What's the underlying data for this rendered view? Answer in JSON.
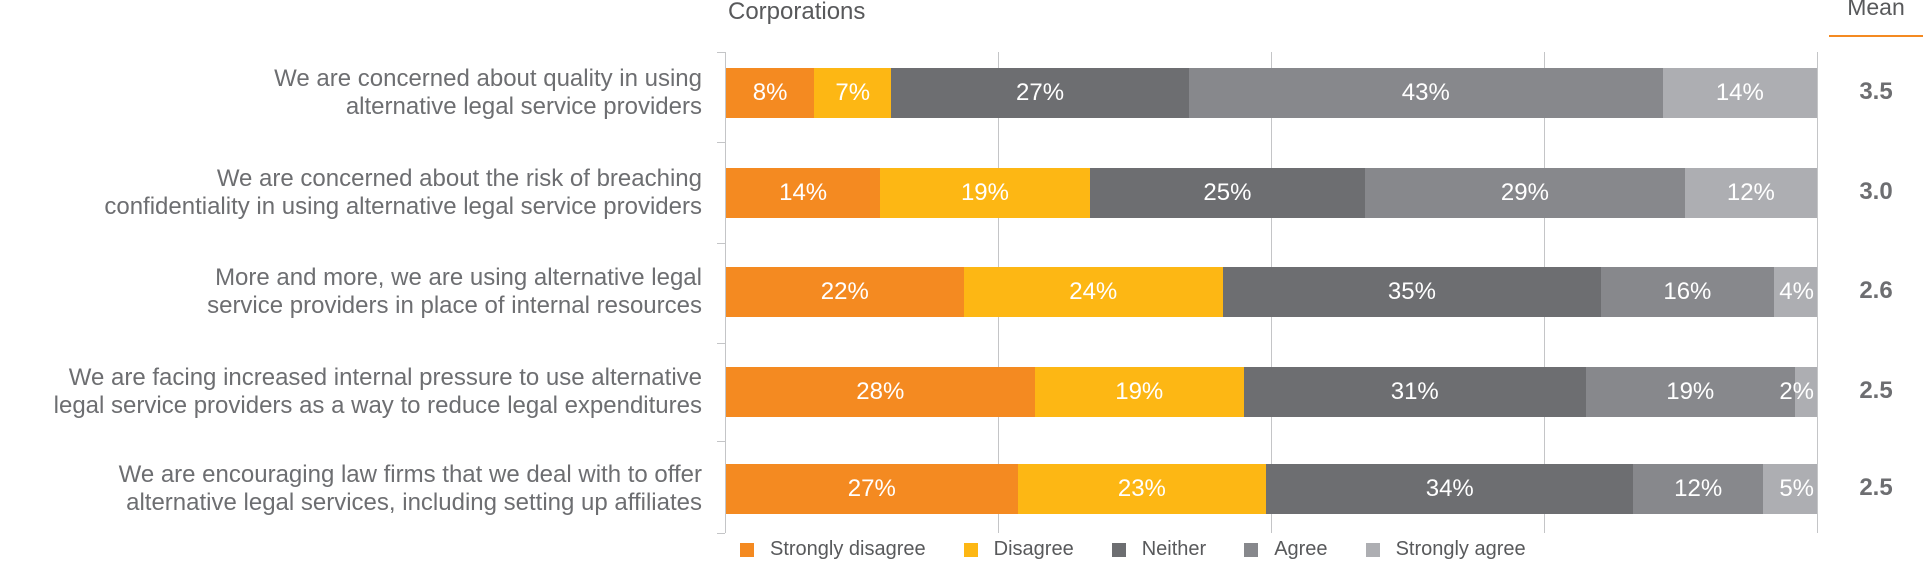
{
  "chart_data": {
    "type": "bar",
    "orientation": "horizontal",
    "stacked": true,
    "title": "Corporations",
    "mean_header": "Mean",
    "xlabel": "",
    "ylabel": "",
    "xlim": [
      0,
      100
    ],
    "grid": true,
    "legend_position": "bottom",
    "categories": [
      [
        "We are concerned about quality in using",
        "alternative legal service providers"
      ],
      [
        "We are concerned about the risk of breaching",
        "confidentiality in using alternative legal service providers"
      ],
      [
        "More and more, we are using alternative legal",
        "service providers in place of internal resources"
      ],
      [
        "We are facing increased internal pressure to use alternative",
        "legal service providers as a way to reduce legal expenditures"
      ],
      [
        "We are encouraging law firms that we deal with to offer",
        "alternative legal services, including setting up affiliates"
      ]
    ],
    "series": [
      {
        "name": "Strongly disagree",
        "color": "#F48A21",
        "values": [
          8,
          14,
          22,
          28,
          27
        ]
      },
      {
        "name": "Disagree",
        "color": "#FDB714",
        "values": [
          7,
          19,
          24,
          19,
          23
        ]
      },
      {
        "name": "Neither",
        "color": "#6D6E71",
        "values": [
          27,
          25,
          35,
          31,
          34
        ]
      },
      {
        "name": "Agree",
        "color": "#87888C",
        "values": [
          43,
          29,
          16,
          19,
          12
        ]
      },
      {
        "name": "Strongly agree",
        "color": "#ADAEB2",
        "values": [
          14,
          12,
          4,
          2,
          5
        ]
      }
    ],
    "means": [
      "3.5",
      "3.0",
      "2.6",
      "2.5",
      "2.5"
    ],
    "value_suffix": "%"
  }
}
